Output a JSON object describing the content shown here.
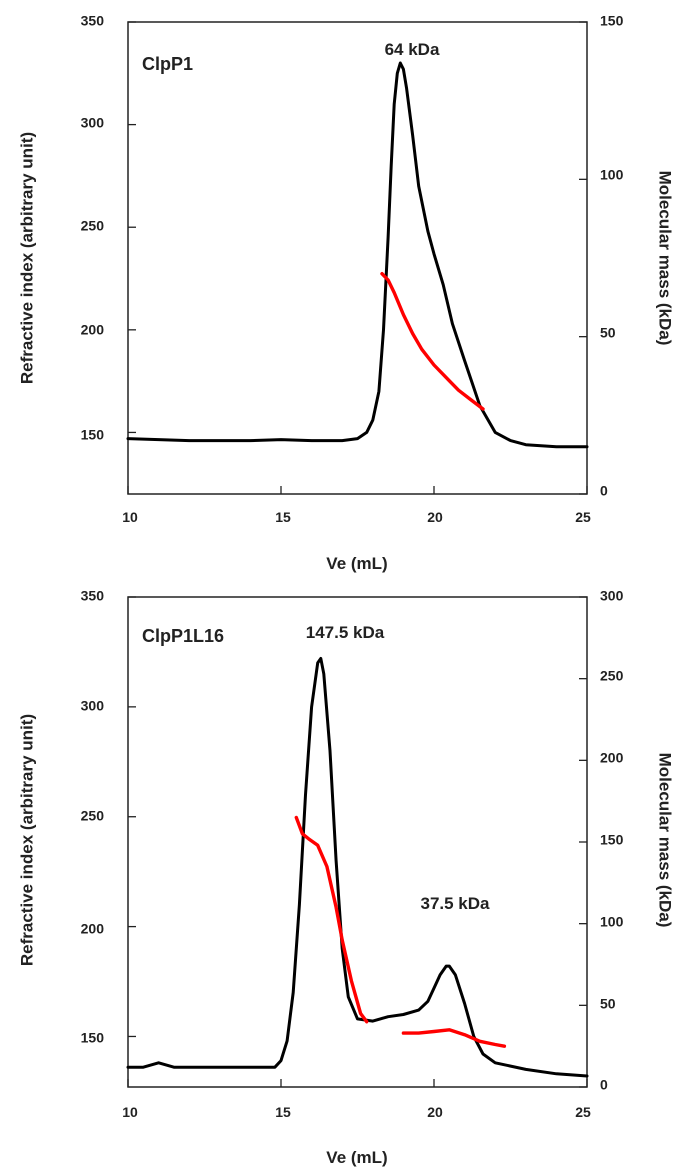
{
  "chart_data": [
    {
      "type": "line",
      "panel_label": "ClpP1",
      "xlabel": "Ve (mL)",
      "ylabel_left": "Refractive index (arbitrary unit)",
      "ylabel_right": "Molecular mass (kDa)",
      "xlim": [
        10,
        25
      ],
      "ylim_left": [
        120,
        350
      ],
      "ylim_right": [
        0,
        150
      ],
      "x_ticks": [
        "10",
        "15",
        "20",
        "25"
      ],
      "y_left_ticks": [
        "150",
        "200",
        "250",
        "300",
        "350"
      ],
      "y_right_ticks": [
        "0",
        "50",
        "100",
        "150"
      ],
      "grid": false,
      "annotations": [
        {
          "text": "64 kDa",
          "x": 19.0,
          "y": 335
        }
      ],
      "series": [
        {
          "axis": "left",
          "color": "#000000",
          "x": [
            10.0,
            11.0,
            12.0,
            13.0,
            14.0,
            15.0,
            16.0,
            17.0,
            17.5,
            17.8,
            18.0,
            18.2,
            18.35,
            18.5,
            18.6,
            18.7,
            18.8,
            18.9,
            19.0,
            19.1,
            19.3,
            19.5,
            19.8,
            20.0,
            20.3,
            20.6,
            21.0,
            21.5,
            22.0,
            22.5,
            23.0,
            24.0,
            25.0
          ],
          "y": [
            147,
            146.5,
            146,
            146,
            146,
            146.5,
            146,
            146,
            147,
            150,
            156,
            170,
            200,
            245,
            280,
            310,
            325,
            330,
            327,
            318,
            295,
            270,
            248,
            237,
            222,
            203,
            185,
            163,
            150,
            146,
            144,
            143,
            143
          ]
        },
        {
          "axis": "right",
          "color": "#ff0000",
          "x": [
            18.3,
            18.5,
            18.7,
            19.0,
            19.3,
            19.6,
            20.0,
            20.4,
            20.8,
            21.2,
            21.6
          ],
          "y": [
            70,
            68,
            64,
            57,
            51,
            46,
            41,
            37,
            33,
            30,
            27
          ]
        }
      ]
    },
    {
      "type": "line",
      "panel_label": "ClpP1L16",
      "xlabel": "Ve (mL)",
      "ylabel_left": "Refractive index (arbitrary unit)",
      "ylabel_right": "Molecular mass (kDa)",
      "xlim": [
        10,
        25
      ],
      "ylim_left": [
        127,
        350
      ],
      "ylim_right": [
        0,
        300
      ],
      "x_ticks": [
        "10",
        "15",
        "20",
        "25"
      ],
      "y_left_ticks": [
        "150",
        "200",
        "250",
        "300",
        "350"
      ],
      "y_right_ticks": [
        "0",
        "50",
        "100",
        "150",
        "200",
        "250",
        "300"
      ],
      "grid": false,
      "annotations": [
        {
          "text": "147.5 kDa",
          "x": 16.3,
          "y": 330
        },
        {
          "text": "37.5 kDa",
          "x": 20.5,
          "y": 194
        }
      ],
      "series": [
        {
          "axis": "left",
          "color": "#000000",
          "x": [
            10.0,
            10.5,
            11.0,
            11.5,
            12.0,
            13.0,
            14.0,
            14.8,
            15.0,
            15.2,
            15.4,
            15.6,
            15.8,
            16.0,
            16.2,
            16.3,
            16.4,
            16.6,
            16.8,
            17.0,
            17.2,
            17.5,
            18.0,
            18.5,
            19.0,
            19.5,
            19.8,
            20.0,
            20.2,
            20.4,
            20.5,
            20.7,
            21.0,
            21.3,
            21.6,
            22.0,
            23.0,
            24.0,
            25.0
          ],
          "y": [
            136,
            136,
            138,
            136,
            136,
            136,
            136,
            136,
            139,
            148,
            170,
            210,
            260,
            300,
            320,
            322,
            315,
            280,
            230,
            190,
            168,
            158,
            157,
            159,
            160,
            162,
            166,
            172,
            178,
            182,
            182,
            178,
            165,
            150,
            142,
            138,
            135,
            133,
            132
          ]
        },
        {
          "axis": "right",
          "color": "#ff0000",
          "x": [
            15.5,
            15.7,
            15.9,
            16.2,
            16.5,
            16.8,
            17.0,
            17.3,
            17.6,
            17.8
          ],
          "y": [
            165,
            155,
            152,
            148,
            135,
            110,
            90,
            65,
            45,
            40
          ]
        },
        {
          "axis": "right",
          "color": "#ff0000",
          "x": [
            19.0,
            19.5,
            20.0,
            20.5,
            21.0,
            21.5,
            22.0,
            22.3
          ],
          "y": [
            33,
            33,
            34,
            35,
            32,
            28,
            26,
            25
          ]
        }
      ]
    }
  ]
}
